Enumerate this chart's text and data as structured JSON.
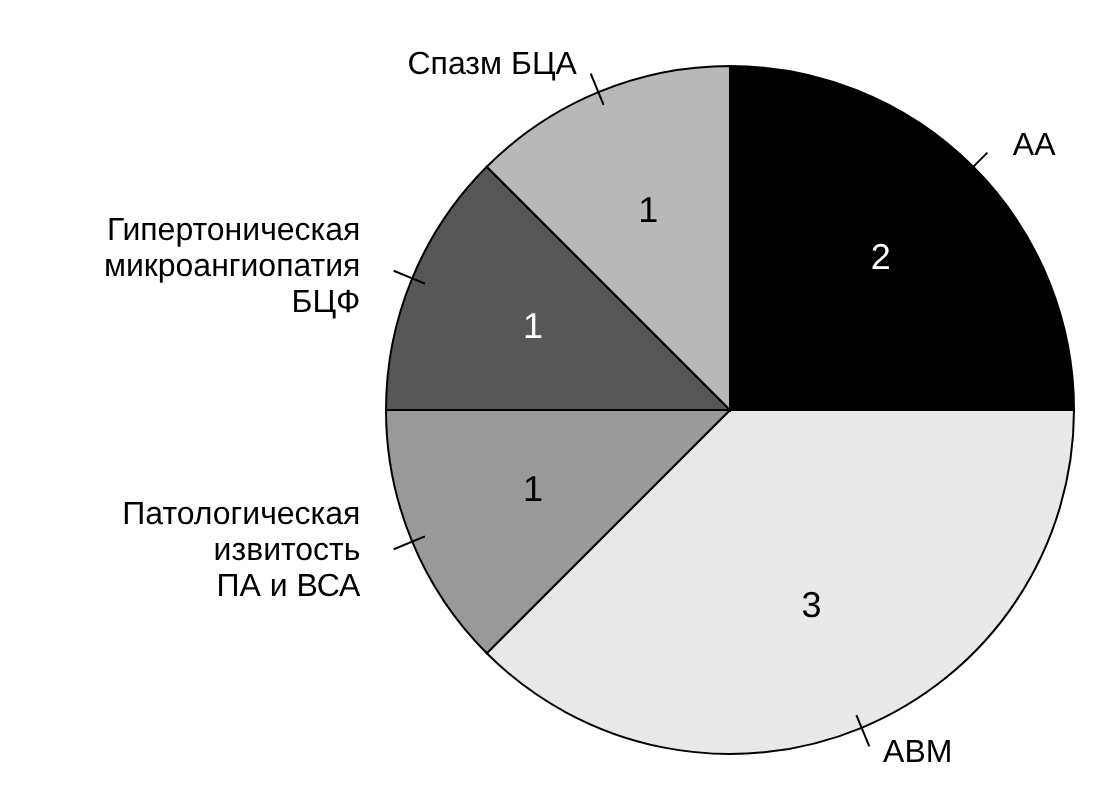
{
  "chart_data": {
    "type": "pie",
    "categories": [
      "АА",
      "АВМ",
      "Патологическая\nизвитость\nПА и ВСА",
      "Гипертоническая\nмикроангиопатия\nБЦФ",
      "Спазм БЦА"
    ],
    "values": [
      2,
      3,
      1,
      1,
      1
    ],
    "colors": [
      "#000000",
      "#e8e8e8",
      "#999999",
      "#575757",
      "#b8b8b8"
    ],
    "data_labels": true
  }
}
